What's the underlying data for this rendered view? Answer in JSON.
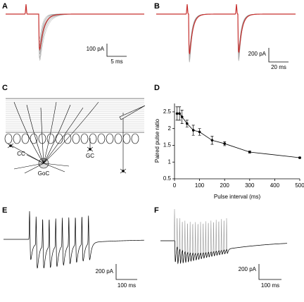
{
  "panels": {
    "A": {
      "label": "A",
      "scale_y": "100 pA",
      "scale_x": "5 ms"
    },
    "B": {
      "label": "B",
      "scale_y": "200 pA",
      "scale_x": "20 ms"
    },
    "C": {
      "label": "C"
    },
    "D": {
      "label": "D"
    },
    "E": {
      "label": "E",
      "scale_y": "200 pA",
      "scale_x": "100 ms"
    },
    "F": {
      "label": "F",
      "scale_y": "200 pA",
      "scale_x": "100 ms"
    }
  },
  "diagram": {
    "cc": "CC",
    "gc": "GC",
    "goc": "GoC"
  },
  "chart_data": {
    "type": "line",
    "xlabel": "Pulse interval (ms)",
    "ylabel": "Paired pulse ratio",
    "x": [
      10,
      20,
      30,
      50,
      75,
      100,
      150,
      200,
      300,
      500
    ],
    "values": [
      2.45,
      2.45,
      2.35,
      2.15,
      1.95,
      1.9,
      1.65,
      1.55,
      1.3,
      1.13
    ],
    "errors": [
      0.2,
      0.2,
      0.2,
      0.1,
      0.15,
      0.1,
      0.12,
      0.06,
      0.03,
      0.02
    ],
    "color": "#000000",
    "xlim": [
      0,
      500
    ],
    "ylim": [
      0.5,
      2.75
    ],
    "xticks": [
      0,
      100,
      200,
      300,
      400,
      500
    ],
    "yticks": [
      0.5,
      1.0,
      1.5,
      2.0,
      2.5
    ]
  }
}
